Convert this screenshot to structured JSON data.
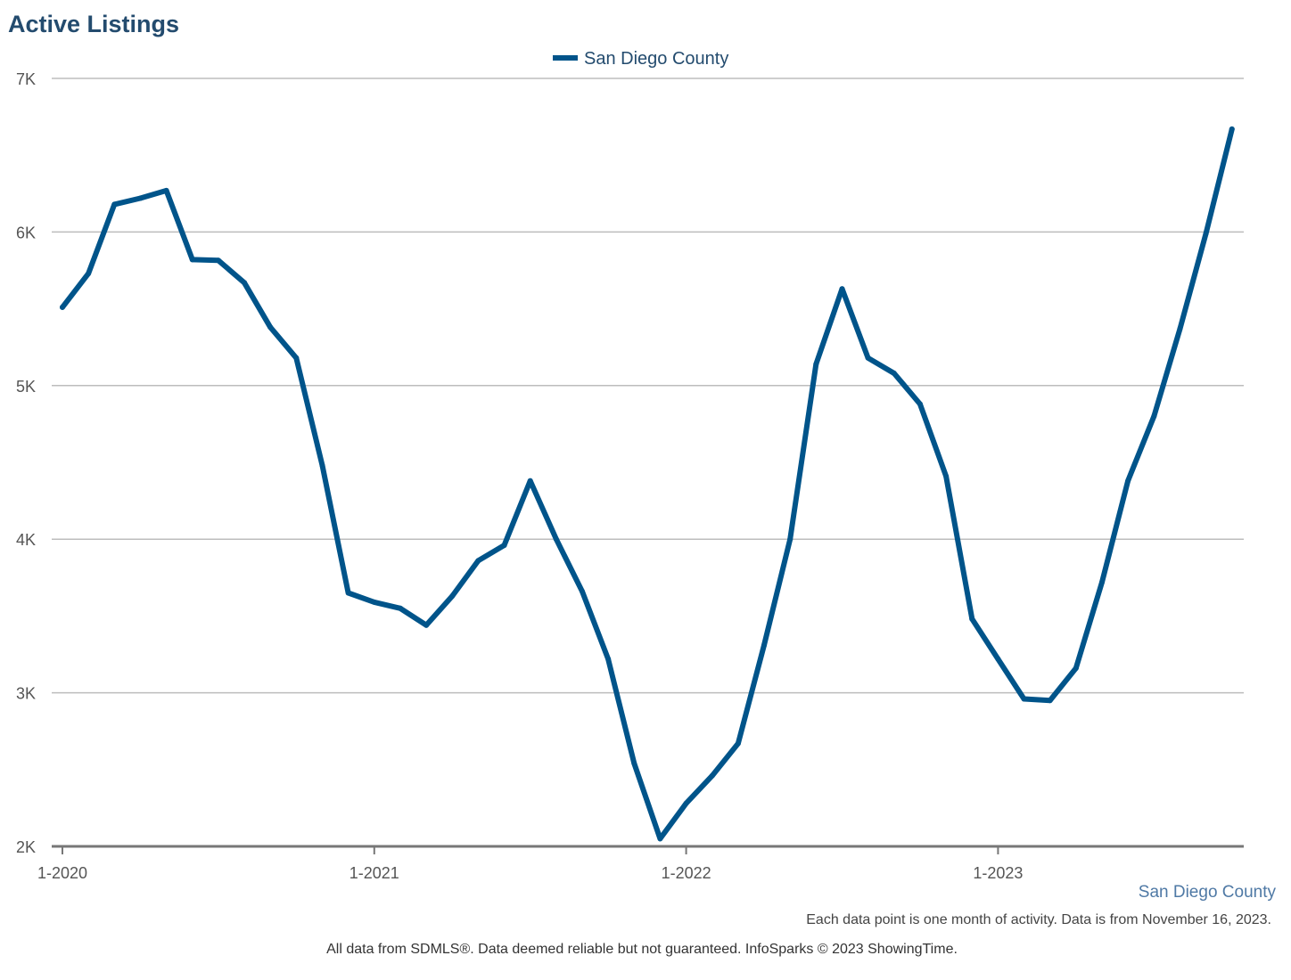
{
  "colors": {
    "series": "#00548a",
    "title": "#234b6e",
    "grid": "#bdbdbd",
    "axis": "#777777"
  },
  "chart_data": {
    "type": "line",
    "title": "Active Listings",
    "legend": "top-center",
    "xlabel": "",
    "ylabel": "",
    "ylim": [
      2000,
      7000
    ],
    "yticks": [
      {
        "value": 2000,
        "label": "2K"
      },
      {
        "value": 3000,
        "label": "3K"
      },
      {
        "value": 4000,
        "label": "4K"
      },
      {
        "value": 5000,
        "label": "5K"
      },
      {
        "value": 6000,
        "label": "6K"
      },
      {
        "value": 7000,
        "label": "7K"
      }
    ],
    "xticks": [
      {
        "index": 0,
        "label": "1-2020"
      },
      {
        "index": 12,
        "label": "1-2021"
      },
      {
        "index": 24,
        "label": "1-2022"
      },
      {
        "index": 36,
        "label": "1-2023"
      }
    ],
    "x_count": 48,
    "series": [
      {
        "name": "San Diego County",
        "values": [
          5510,
          5730,
          6180,
          6220,
          6270,
          5820,
          5815,
          5670,
          5380,
          5180,
          4480,
          3650,
          3590,
          3550,
          3440,
          3630,
          3860,
          3960,
          4380,
          4000,
          3660,
          3220,
          2540,
          2050,
          2280,
          2460,
          2670,
          3310,
          4000,
          5140,
          5630,
          5180,
          5080,
          4880,
          4410,
          3480,
          3220,
          2960,
          2950,
          3160,
          3720,
          4380,
          4800,
          5370,
          5990,
          6670
        ]
      }
    ]
  },
  "footer": {
    "region": "San Diego County",
    "note": "Each data point is one month of activity. Data is from November 16, 2023.",
    "source": "All data from SDMLS®. Data deemed reliable but not guaranteed. InfoSparks © 2023 ShowingTime."
  }
}
